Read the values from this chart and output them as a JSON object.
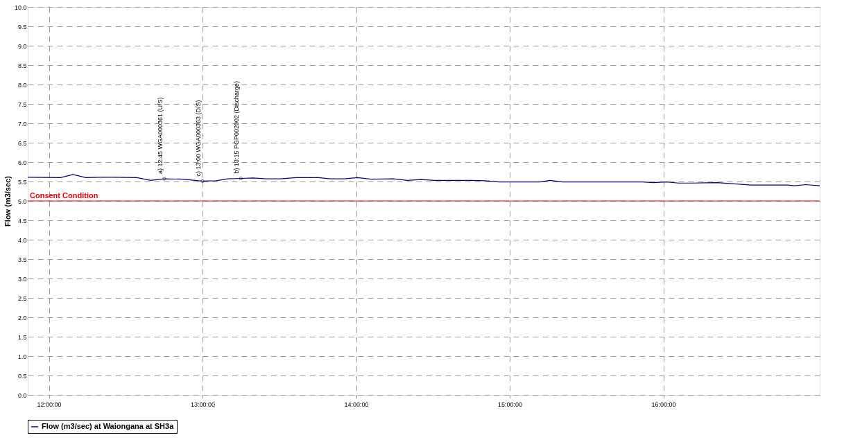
{
  "chart_data": {
    "type": "line",
    "ylabel": "Flow (m3/sec)",
    "x": [
      11.862,
      12.076,
      12.156,
      12.24,
      12.333,
      12.422,
      12.573,
      12.662,
      12.75,
      12.867,
      13.0,
      13.089,
      13.164,
      13.25,
      13.329,
      13.418,
      13.507,
      13.609,
      13.756,
      13.831,
      13.92,
      14.009,
      14.098,
      14.244,
      14.333,
      14.422,
      14.511,
      14.751,
      14.84,
      14.929,
      15.196,
      15.262,
      15.342,
      15.862,
      15.933,
      16.022,
      16.098,
      16.187,
      16.351,
      16.573,
      16.809,
      16.853,
      16.929,
      17.018
    ],
    "series": [
      {
        "name": "Flow (m3/sec) at Waiongana at SH3a",
        "color": "#000080",
        "values": [
          5.61,
          5.6,
          5.68,
          5.6,
          5.61,
          5.61,
          5.6,
          5.53,
          5.57,
          5.56,
          5.51,
          5.52,
          5.57,
          5.58,
          5.59,
          5.57,
          5.57,
          5.6,
          5.6,
          5.57,
          5.57,
          5.6,
          5.56,
          5.57,
          5.53,
          5.55,
          5.53,
          5.53,
          5.52,
          5.49,
          5.49,
          5.53,
          5.49,
          5.49,
          5.47,
          5.49,
          5.46,
          5.46,
          5.47,
          5.41,
          5.41,
          5.39,
          5.42,
          5.39
        ]
      }
    ],
    "xlim": [
      11.862,
      17.018
    ],
    "xticks": [
      {
        "value": 12,
        "label": "12:00:00"
      },
      {
        "value": 13,
        "label": "13:00:00"
      },
      {
        "value": 14,
        "label": "14:00:00"
      },
      {
        "value": 15,
        "label": "15:00:00"
      },
      {
        "value": 16,
        "label": "16:00:00"
      }
    ],
    "ylim": [
      0,
      10
    ],
    "yticks": [
      {
        "value": 0,
        "label": "0.0"
      },
      {
        "value": 0.5,
        "label": "0.5"
      },
      {
        "value": 1,
        "label": "1.0"
      },
      {
        "value": 1.5,
        "label": "1.5"
      },
      {
        "value": 2,
        "label": "2.0"
      },
      {
        "value": 2.5,
        "label": "2.5"
      },
      {
        "value": 3,
        "label": "3.0"
      },
      {
        "value": 3.5,
        "label": "3.5"
      },
      {
        "value": 4,
        "label": "4.0"
      },
      {
        "value": 4.5,
        "label": "4.5"
      },
      {
        "value": 5,
        "label": "5.0"
      },
      {
        "value": 5.5,
        "label": "5.5"
      },
      {
        "value": 6,
        "label": "6.0"
      },
      {
        "value": 6.5,
        "label": "6.5"
      },
      {
        "value": 7,
        "label": "7.0"
      },
      {
        "value": 7.5,
        "label": "7.5"
      },
      {
        "value": 8,
        "label": "8.0"
      },
      {
        "value": 8.5,
        "label": "8.5"
      },
      {
        "value": 9,
        "label": "9.0"
      },
      {
        "value": 9.5,
        "label": "9.5"
      },
      {
        "value": 10,
        "label": "10.0"
      }
    ],
    "ref_lines": [
      {
        "axis": "y",
        "value": 5,
        "label": "Consent Condition",
        "color": "#e8000b"
      }
    ],
    "annotations": [
      {
        "text": "a) 12:45 WGA000361 (U/S)",
        "x": 12.75,
        "y": 5.57
      },
      {
        "text": "c) 13:00 WGA000363 (D/S)",
        "x": 13.0,
        "y": 5.51
      },
      {
        "text": "b) 13:15 PGP002002 (Discharge)",
        "x": 13.25,
        "y": 5.58
      }
    ],
    "grid": true,
    "line_style": "solid",
    "marker": "none",
    "legend": "bottom"
  }
}
